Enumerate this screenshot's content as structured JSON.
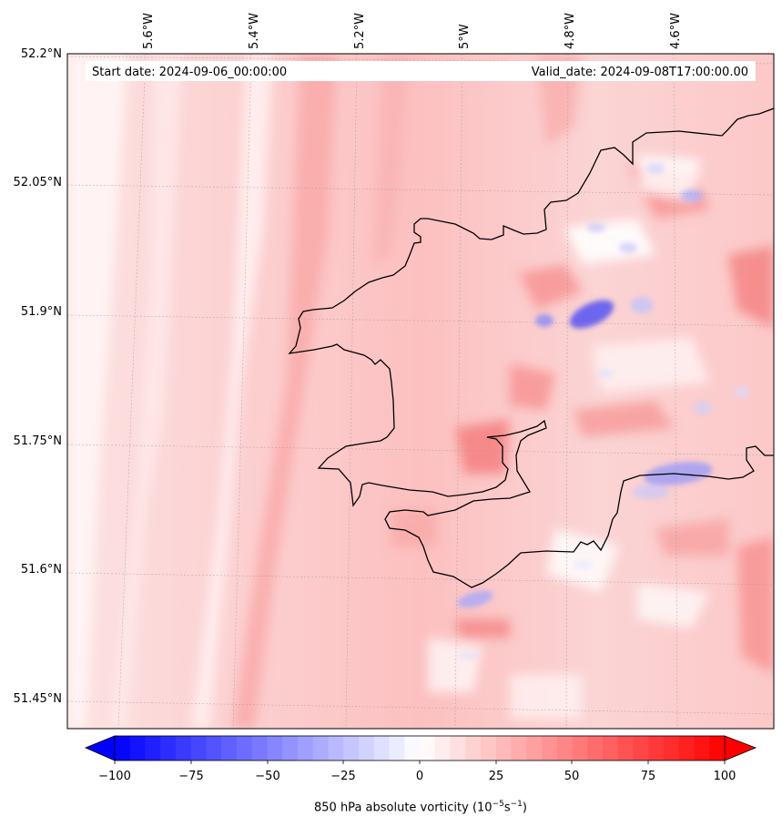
{
  "map": {
    "start_date_text": "Start date: 2024-09-06_00:00:00",
    "valid_date_text": "Valid_date: 2024-09-08T17:00:00.00",
    "lon_labels": [
      "5.6°W",
      "5.4°W",
      "5.2°W",
      "5°W",
      "4.8°W",
      "4.6°W"
    ],
    "lat_labels": [
      "52.2°N",
      "52.05°N",
      "51.9°N",
      "51.75°N",
      "51.6°N",
      "51.45°N"
    ],
    "field": "850 hPa absolute vorticity",
    "colormap": "bwr",
    "colors": {
      "min": "#0000ff",
      "mid": "#ffffff",
      "max": "#ff0000",
      "coast": "#000000"
    }
  },
  "colorbar": {
    "label_text": "850 hPa absolute vorticity (10",
    "label_exp1": "−5",
    "label_mid": "s",
    "label_exp2": "−1",
    "label_end": ")",
    "range": [
      -100,
      100
    ],
    "extend": "both",
    "ticks": [
      "−100",
      "−75",
      "−50",
      "−25",
      "0",
      "25",
      "50",
      "75",
      "100"
    ]
  }
}
